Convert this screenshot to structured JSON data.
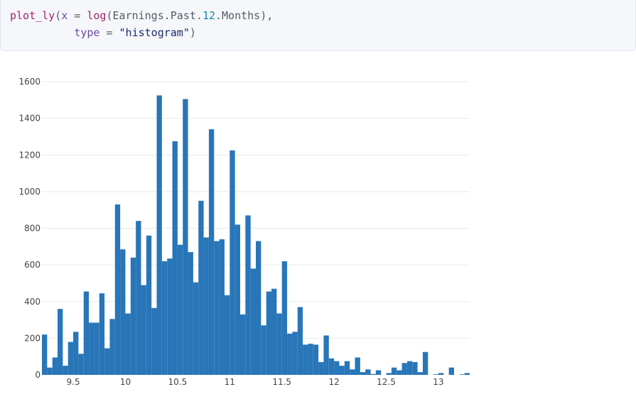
{
  "code": {
    "line1": {
      "fn": "plot_ly",
      "open": "(",
      "arg_x": "x",
      "eq": " = ",
      "fn_log": "log",
      "open2": "(",
      "var_a": "Earnings.Past.",
      "num": "12",
      "var_b": ".Months",
      "close": "),"
    },
    "line2": {
      "indent": "          ",
      "arg_type": "type",
      "eq": " = ",
      "str": "\"histogram\"",
      "close": ")"
    }
  },
  "chart_data": {
    "type": "bar",
    "title": "",
    "xlabel": "",
    "ylabel": "",
    "bar_color": "#2876b8",
    "grid": true,
    "ylim": [
      0,
      1600
    ],
    "xlim": [
      9.2,
      13.3
    ],
    "bin_width": 0.05,
    "x_ticks": [
      "9.5",
      "10",
      "10.5",
      "11",
      "11.5",
      "12",
      "12.5",
      "13"
    ],
    "y_ticks": [
      "0",
      "200",
      "400",
      "600",
      "800",
      "1000",
      "1200",
      "1400",
      "1600"
    ],
    "x": [
      9.225,
      9.275,
      9.325,
      9.375,
      9.425,
      9.475,
      9.525,
      9.575,
      9.625,
      9.675,
      9.725,
      9.775,
      9.825,
      9.875,
      9.925,
      9.975,
      10.025,
      10.075,
      10.125,
      10.175,
      10.225,
      10.275,
      10.325,
      10.375,
      10.425,
      10.475,
      10.525,
      10.575,
      10.625,
      10.675,
      10.725,
      10.775,
      10.825,
      10.875,
      10.925,
      10.975,
      11.025,
      11.075,
      11.125,
      11.175,
      11.225,
      11.275,
      11.325,
      11.375,
      11.425,
      11.475,
      11.525,
      11.575,
      11.625,
      11.675,
      11.725,
      11.775,
      11.825,
      11.875,
      11.925,
      11.975,
      12.025,
      12.075,
      12.125,
      12.175,
      12.225,
      12.275,
      12.325,
      12.375,
      12.425,
      12.475,
      12.525,
      12.575,
      12.625,
      12.675,
      12.725,
      12.775,
      12.825,
      12.875,
      12.925,
      12.975,
      13.025,
      13.075,
      13.125,
      13.175,
      13.225,
      13.275
    ],
    "values": [
      220,
      40,
      95,
      360,
      50,
      180,
      235,
      115,
      455,
      285,
      285,
      445,
      145,
      305,
      930,
      685,
      335,
      640,
      840,
      490,
      760,
      365,
      1525,
      620,
      635,
      1275,
      710,
      1505,
      670,
      505,
      950,
      750,
      1340,
      730,
      740,
      435,
      1225,
      820,
      330,
      870,
      580,
      730,
      270,
      455,
      470,
      335,
      620,
      225,
      235,
      370,
      165,
      170,
      165,
      70,
      215,
      90,
      75,
      50,
      75,
      30,
      95,
      15,
      30,
      5,
      25,
      0,
      10,
      40,
      25,
      65,
      75,
      70,
      15,
      125,
      0,
      3,
      10,
      0,
      40,
      0,
      3,
      10
    ]
  }
}
